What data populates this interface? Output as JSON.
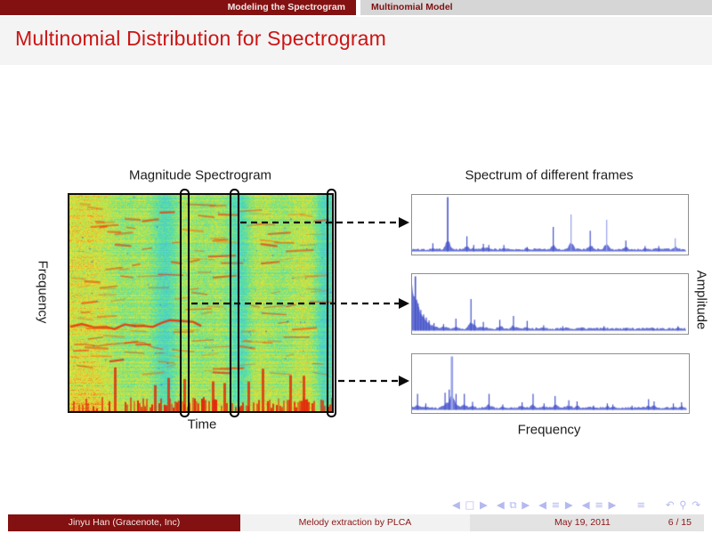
{
  "header": {
    "section": "Modeling the Spectrogram",
    "subsection": "Multinomial Model"
  },
  "title": "Multinomial Distribution for Spectrogram",
  "figure": {
    "left": {
      "title": "Magnitude Spectrogram",
      "xlabel": "Time",
      "ylabel": "Frequency"
    },
    "right": {
      "title": "Spectrum of different frames",
      "xlabel": "Frequency",
      "ylabel": "Amplitude"
    }
  },
  "nav_groups": [
    "◀ □ ▶",
    "◀ ⧉ ▶",
    "◀ ≡ ▶",
    "◀ ≡ ▶",
    "≡",
    "↶ ⚲ ↷"
  ],
  "footer": {
    "author": "Jinyu Han  (Gracenote, Inc)",
    "paper": "Melody extraction by PLCA",
    "date": "May 19, 2011",
    "page": "6 / 15"
  },
  "colors": {
    "dark_red": "#841111",
    "title_red": "#cc1414",
    "head_gray": "#d6d6d6",
    "spectrum_blue": "#4553c9",
    "spectrum_blue_light": "#97a0ea",
    "nav_blue": "#b4b9ef",
    "arrow_black": "#0a0a0a"
  },
  "chart_data": [
    {
      "type": "heatmap",
      "title": "Magnitude Spectrogram",
      "xlabel": "Time",
      "ylabel": "Frequency",
      "colormap": "jet-like (teal/green/yellow/orange/red)",
      "annotations": "three time frames outlined with black rounded rectangles; dashed arrows point from each outlined frame to its spectrum plot",
      "frame_positions_rel": [
        0.43,
        0.62,
        0.99
      ]
    },
    {
      "type": "line",
      "title": "spectrum of frame 2 (top)",
      "xlabel": "Frequency",
      "ylabel": "Amplitude",
      "x_range": [
        0,
        1
      ],
      "y_range": [
        0,
        1
      ],
      "peaks": [
        [
          0.076,
          0.15
        ],
        [
          0.13,
          1.0
        ],
        [
          0.2,
          0.28
        ],
        [
          0.225,
          0.12
        ],
        [
          0.26,
          0.14
        ],
        [
          0.28,
          0.12
        ],
        [
          0.335,
          0.12
        ],
        [
          0.42,
          0.08
        ],
        [
          0.515,
          0.45
        ],
        [
          0.58,
          0.68,
          1
        ],
        [
          0.65,
          0.38
        ],
        [
          0.71,
          0.58,
          1
        ],
        [
          0.78,
          0.2
        ],
        [
          0.85,
          0.1
        ],
        [
          0.9,
          0.1
        ],
        [
          0.96,
          0.24,
          1
        ]
      ]
    },
    {
      "type": "line",
      "title": "spectrum of frame 1 (middle)",
      "xlabel": "Frequency",
      "ylabel": "Amplitude",
      "x_range": [
        0,
        1
      ],
      "y_range": [
        0,
        1
      ],
      "decay": {
        "amp": 0.62,
        "tau": 0.022
      },
      "peaks": [
        [
          0.012,
          1.0
        ],
        [
          0.022,
          0.5
        ],
        [
          0.032,
          0.38
        ],
        [
          0.042,
          0.3
        ],
        [
          0.052,
          0.24
        ],
        [
          0.062,
          0.19
        ],
        [
          0.08,
          0.14
        ],
        [
          0.115,
          0.12
        ],
        [
          0.16,
          0.22
        ],
        [
          0.215,
          0.58
        ],
        [
          0.228,
          0.2
        ],
        [
          0.26,
          0.16
        ],
        [
          0.32,
          0.2
        ],
        [
          0.37,
          0.27
        ],
        [
          0.42,
          0.18
        ],
        [
          0.48,
          0.1
        ],
        [
          0.55,
          0.08
        ],
        [
          0.62,
          0.06
        ],
        [
          0.7,
          0.08
        ],
        [
          0.78,
          0.05
        ],
        [
          0.88,
          0.05
        ],
        [
          0.97,
          0.08
        ]
      ]
    },
    {
      "type": "line",
      "title": "spectrum of frame 3 (bottom)",
      "xlabel": "Frequency",
      "ylabel": "Amplitude",
      "x_range": [
        0,
        1
      ],
      "y_range": [
        0,
        1
      ],
      "peaks": [
        [
          0.02,
          0.3
        ],
        [
          0.05,
          0.12
        ],
        [
          0.12,
          0.32
        ],
        [
          0.135,
          0.38
        ],
        [
          0.145,
          1.0,
          1,
          1
        ],
        [
          0.16,
          0.3
        ],
        [
          0.19,
          0.3
        ],
        [
          0.22,
          0.15
        ],
        [
          0.28,
          0.3
        ],
        [
          0.33,
          0.1
        ],
        [
          0.4,
          0.14
        ],
        [
          0.44,
          0.3
        ],
        [
          0.48,
          0.12
        ],
        [
          0.52,
          0.26
        ],
        [
          0.57,
          0.18
        ],
        [
          0.6,
          0.16
        ],
        [
          0.66,
          0.08
        ],
        [
          0.71,
          0.12
        ],
        [
          0.73,
          0.1
        ],
        [
          0.8,
          0.08
        ],
        [
          0.86,
          0.2
        ],
        [
          0.88,
          0.16
        ],
        [
          0.95,
          0.12
        ],
        [
          0.98,
          0.14
        ]
      ]
    }
  ]
}
